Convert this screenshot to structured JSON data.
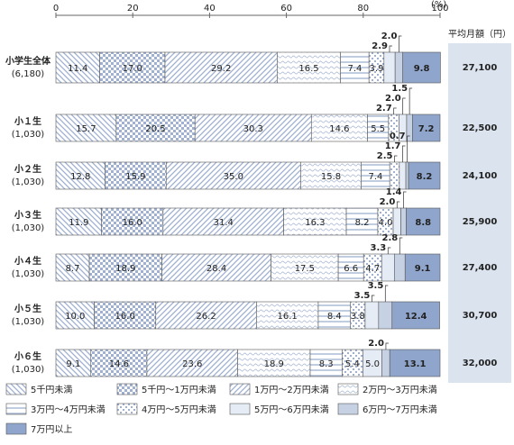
{
  "chart_data": {
    "type": "stacked-bar-horizontal",
    "categories": [
      "小学生全体",
      "小１生",
      "小２生",
      "小３生",
      "小４生",
      "小５生",
      "小６生"
    ],
    "sample_sizes": [
      "(6,180)",
      "(1,030)",
      "(1,030)",
      "(1,030)",
      "(1,030)",
      "(1,030)",
      "(1,030)"
    ],
    "xlim": [
      0,
      100
    ],
    "xticks": [
      0,
      20,
      40,
      60,
      80,
      100
    ],
    "x_unit": "(%)",
    "average_header": "平均月額（円）",
    "averages": [
      "27,100",
      "22,500",
      "24,100",
      "25,900",
      "27,400",
      "30,700",
      "32,000"
    ],
    "series": [
      {
        "name": "5千円未満",
        "color": "#9fb0d0",
        "pattern": "diagonal-down",
        "values": [
          11.4,
          15.7,
          12.8,
          11.9,
          8.7,
          10.0,
          9.1
        ],
        "value_labels": [
          "11.4",
          "15.7",
          "12.8",
          "11.9",
          "8.7",
          "10.0",
          "9.1"
        ]
      },
      {
        "name": "5千円～1万円未満",
        "color": "#9fb0d0",
        "pattern": "checker",
        "values": [
          17.0,
          20.5,
          15.9,
          16.0,
          18.9,
          16.0,
          14.6
        ],
        "value_labels": [
          "17.0",
          "20.5",
          "15.9",
          "16.0",
          "18.9",
          "16.0",
          "14.6"
        ]
      },
      {
        "name": "1万円～2万円未満",
        "color": "#9fb0d0",
        "pattern": "diagonal-up",
        "values": [
          29.2,
          30.3,
          35.0,
          31.4,
          28.4,
          26.2,
          23.6
        ],
        "value_labels": [
          "29.2",
          "30.3",
          "35.0",
          "31.4",
          "28.4",
          "26.2",
          "23.6"
        ]
      },
      {
        "name": "2万円～3万円未満",
        "color": "#b5c2da",
        "pattern": "wave",
        "values": [
          16.5,
          14.6,
          15.8,
          16.3,
          17.5,
          16.1,
          18.9
        ],
        "value_labels": [
          "16.5",
          "14.6",
          "15.8",
          "16.3",
          "17.5",
          "16.1",
          "18.9"
        ]
      },
      {
        "name": "3万円～4万円未満",
        "color": "#9fb0d0",
        "pattern": "horizontal",
        "values": [
          7.4,
          5.5,
          7.4,
          8.2,
          6.6,
          8.4,
          8.3
        ],
        "value_labels": [
          "7.4",
          "5.5",
          "7.4",
          "8.2",
          "6.6",
          "8.4",
          "8.3"
        ]
      },
      {
        "name": "4万円～5万円未満",
        "color": "#9fb0d0",
        "pattern": "dots",
        "values": [
          3.9,
          2.7,
          2.5,
          4.0,
          4.7,
          3.8,
          5.4
        ],
        "value_labels": [
          "3.9",
          "2.7",
          "2.5",
          "4.0",
          "4.7",
          "3.8",
          "5.4"
        ]
      },
      {
        "name": "5万円～6万円未満",
        "color": "#e6ecf5",
        "pattern": "solid",
        "values": [
          2.9,
          2.0,
          1.7,
          2.0,
          3.3,
          3.5,
          5.0
        ],
        "value_labels": [
          "2.9",
          "2.0",
          "1.7",
          "2.0",
          "3.3",
          "3.5",
          "5.0"
        ]
      },
      {
        "name": "6万円～7万円未満",
        "color": "#c6d2e4",
        "pattern": "solid",
        "values": [
          2.0,
          1.5,
          0.7,
          1.4,
          2.8,
          3.5,
          2.0
        ],
        "value_labels": [
          "2.0",
          "1.5",
          "0.7",
          "1.4",
          "2.8",
          "3.5",
          "2.0"
        ]
      },
      {
        "name": "7万円以上",
        "color": "#8fa5cb",
        "pattern": "solid",
        "values": [
          9.8,
          7.2,
          8.2,
          8.8,
          9.1,
          12.4,
          13.1
        ],
        "value_labels": [
          "9.8",
          "7.2",
          "8.2",
          "8.8",
          "9.1",
          "12.4",
          "13.1"
        ]
      }
    ]
  }
}
